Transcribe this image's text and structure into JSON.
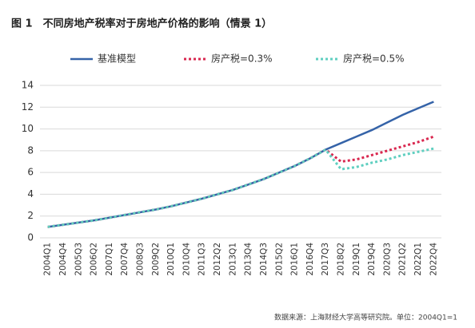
{
  "chart_data": {
    "type": "line",
    "title": "图 1　不同房地产税率对于房地产价格的影响（情景 1）",
    "note": "数据来源：上海财经大学高等研究院。单位：2004Q1=1",
    "categories": [
      "2004Q1",
      "2004Q4",
      "2005Q3",
      "2006Q2",
      "2007Q1",
      "2007Q4",
      "2008Q3",
      "2009Q2",
      "2010Q1",
      "2010Q4",
      "2011Q3",
      "2012Q2",
      "2013Q1",
      "2013Q4",
      "2014Q3",
      "2015Q2",
      "2016Q1",
      "2016Q4",
      "2017Q3",
      "2018Q2",
      "2019Q1",
      "2019Q4",
      "2020Q3",
      "2021Q2",
      "2022Q1",
      "2022Q4"
    ],
    "series": [
      {
        "name": "基准模型",
        "color": "#3563a8",
        "dashed": false,
        "values": [
          1.0,
          1.2,
          1.4,
          1.6,
          1.85,
          2.1,
          2.35,
          2.6,
          2.9,
          3.25,
          3.6,
          4.0,
          4.4,
          4.9,
          5.4,
          6.0,
          6.6,
          7.3,
          8.1,
          8.7,
          9.3,
          9.9,
          10.6,
          11.3,
          11.9,
          12.5
        ]
      },
      {
        "name": "房产税=0.3%",
        "color": "#d9274f",
        "dashed": true,
        "values": [
          1.0,
          1.2,
          1.4,
          1.6,
          1.85,
          2.1,
          2.35,
          2.6,
          2.9,
          3.25,
          3.6,
          4.0,
          4.4,
          4.9,
          5.4,
          6.0,
          6.6,
          7.3,
          8.1,
          7.0,
          7.2,
          7.6,
          8.0,
          8.4,
          8.8,
          9.3
        ]
      },
      {
        "name": "房产税=0.5%",
        "color": "#5fcfc0",
        "dashed": true,
        "values": [
          1.0,
          1.2,
          1.4,
          1.6,
          1.85,
          2.1,
          2.35,
          2.6,
          2.9,
          3.25,
          3.6,
          4.0,
          4.4,
          4.9,
          5.4,
          6.0,
          6.6,
          7.3,
          8.1,
          6.3,
          6.5,
          6.9,
          7.2,
          7.6,
          7.9,
          8.2
        ]
      }
    ],
    "ylim": [
      0,
      14
    ],
    "yticks": [
      0,
      2,
      4,
      6,
      8,
      10,
      12,
      14
    ],
    "grid": true
  }
}
